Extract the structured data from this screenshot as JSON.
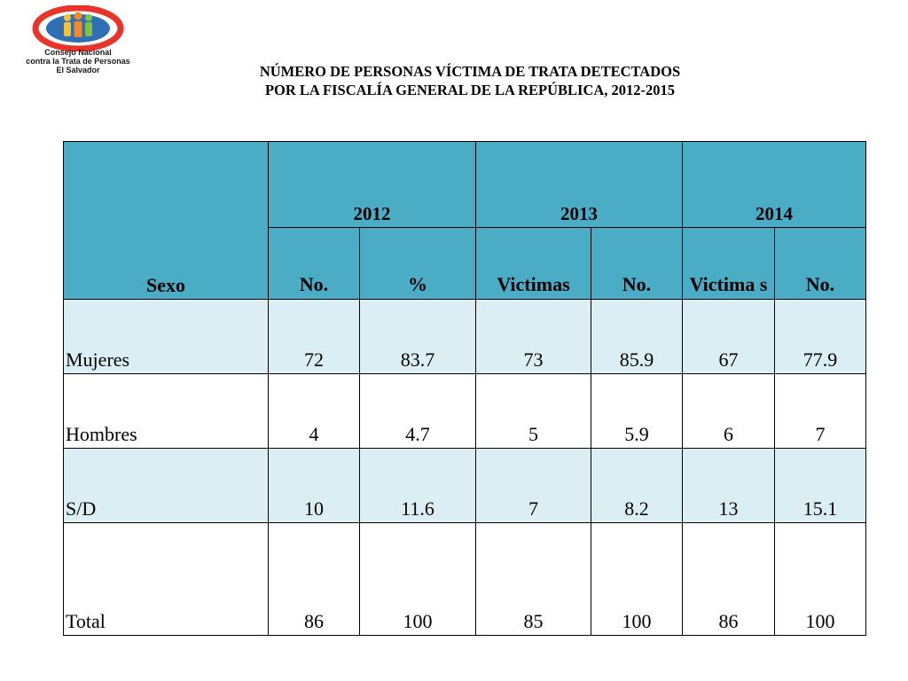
{
  "logo": {
    "icon": "people-circle-logo-icon",
    "line1": "Consejo Nacional",
    "line2": "contra la Trata de Personas",
    "line3": "El Salvador"
  },
  "title": {
    "line1": "NÚMERO DE PERSONAS VÍCTIMA DE TRATA DETECTADOS",
    "line2": "POR LA FISCALÍA GENERAL DE LA REPÚBLICA, 2012-2015"
  },
  "table": {
    "sexo_header": "Sexo",
    "years": [
      "2012",
      "2013",
      "2014"
    ],
    "subheaders": [
      "No.",
      "%",
      "Victimas",
      "No.",
      "Victima s",
      "No."
    ],
    "rows": [
      {
        "label": "Mujeres",
        "values": [
          "72",
          "83.7",
          "73",
          "85.9",
          "67",
          "77.9"
        ]
      },
      {
        "label": "Hombres",
        "values": [
          "4",
          "4.7",
          "5",
          "5.9",
          "6",
          "7"
        ]
      },
      {
        "label": "S/D",
        "values": [
          "10",
          "11.6",
          "7",
          "8.2",
          "13",
          "15.1"
        ]
      },
      {
        "label": "Total",
        "values": [
          "86",
          "100",
          "85",
          "100",
          "86",
          "100"
        ]
      }
    ]
  },
  "colors": {
    "header": "#4bacc6",
    "shaded_row": "#dbeef4"
  }
}
